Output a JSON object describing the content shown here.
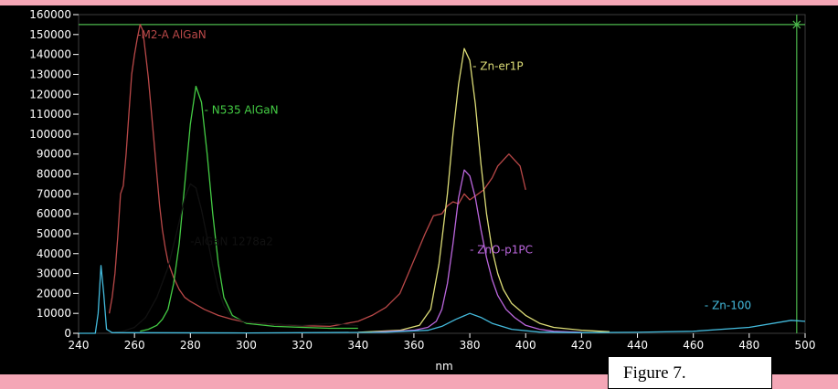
{
  "chart_data": {
    "type": "line",
    "title": "",
    "xlabel": "nm",
    "ylabel": "",
    "xlim": [
      240,
      500
    ],
    "ylim": [
      0,
      160000
    ],
    "x_ticks": [
      240,
      260,
      280,
      300,
      320,
      340,
      360,
      380,
      400,
      420,
      440,
      460,
      480,
      500
    ],
    "y_ticks": [
      0,
      10000,
      20000,
      30000,
      40000,
      50000,
      60000,
      70000,
      80000,
      90000,
      100000,
      110000,
      120000,
      130000,
      140000,
      150000,
      160000
    ],
    "grid": false,
    "legend": "none",
    "cursor_y": 155000,
    "cursor_x": 497,
    "series": [
      {
        "name": "-M2-A AlGaN",
        "color": "#b94848",
        "label_at": [
          261,
          150000
        ],
        "points": [
          [
            251,
            10000
          ],
          [
            252,
            18000
          ],
          [
            253,
            30000
          ],
          [
            254,
            48000
          ],
          [
            255,
            70000
          ],
          [
            256,
            74000
          ],
          [
            257,
            90000
          ],
          [
            258,
            110000
          ],
          [
            259,
            130000
          ],
          [
            260,
            140000
          ],
          [
            261,
            148000
          ],
          [
            262,
            155000
          ],
          [
            263,
            152000
          ],
          [
            264,
            140000
          ],
          [
            265,
            128000
          ],
          [
            266,
            112000
          ],
          [
            267,
            96000
          ],
          [
            268,
            80000
          ],
          [
            269,
            64000
          ],
          [
            270,
            52000
          ],
          [
            271,
            43000
          ],
          [
            272,
            36000
          ],
          [
            274,
            28000
          ],
          [
            276,
            22000
          ],
          [
            278,
            18000
          ],
          [
            280,
            16000
          ],
          [
            285,
            12000
          ],
          [
            290,
            9000
          ],
          [
            295,
            7000
          ],
          [
            300,
            5500
          ],
          [
            310,
            4500
          ],
          [
            320,
            3800
          ],
          [
            330,
            3500
          ],
          [
            340,
            6000
          ],
          [
            345,
            9000
          ],
          [
            350,
            13000
          ],
          [
            355,
            20000
          ],
          [
            358,
            30000
          ],
          [
            361,
            40000
          ],
          [
            364,
            50000
          ],
          [
            367,
            59000
          ],
          [
            370,
            60000
          ],
          [
            372,
            64000
          ],
          [
            374,
            66000
          ],
          [
            376,
            65000
          ],
          [
            378,
            70000
          ],
          [
            380,
            67000
          ],
          [
            382,
            69000
          ],
          [
            385,
            72000
          ],
          [
            388,
            78000
          ],
          [
            390,
            84000
          ],
          [
            392,
            87000
          ],
          [
            394,
            90000
          ],
          [
            396,
            87000
          ],
          [
            398,
            84000
          ],
          [
            399,
            78000
          ],
          [
            400,
            72000
          ]
        ]
      },
      {
        "name": "- N535 AlGaN",
        "color": "#44cc44",
        "label_at": [
          285,
          112000
        ],
        "points": [
          [
            262,
            1000
          ],
          [
            265,
            2000
          ],
          [
            268,
            4000
          ],
          [
            270,
            7000
          ],
          [
            272,
            12000
          ],
          [
            274,
            25000
          ],
          [
            276,
            45000
          ],
          [
            278,
            75000
          ],
          [
            280,
            105000
          ],
          [
            282,
            124000
          ],
          [
            284,
            116000
          ],
          [
            286,
            90000
          ],
          [
            288,
            60000
          ],
          [
            290,
            35000
          ],
          [
            292,
            18000
          ],
          [
            295,
            9000
          ],
          [
            300,
            5000
          ],
          [
            310,
            3500
          ],
          [
            320,
            3000
          ],
          [
            330,
            2500
          ],
          [
            340,
            2500
          ]
        ]
      },
      {
        "name": "-AlGaN 1278a2",
        "color": "#111111",
        "label_at": [
          280,
          46000
        ],
        "points": [
          [
            253,
            500
          ],
          [
            256,
            1000
          ],
          [
            260,
            3000
          ],
          [
            264,
            8000
          ],
          [
            268,
            18000
          ],
          [
            272,
            33000
          ],
          [
            275,
            50000
          ],
          [
            278,
            68000
          ],
          [
            280,
            75000
          ],
          [
            282,
            73000
          ],
          [
            284,
            62000
          ],
          [
            286,
            48000
          ],
          [
            288,
            34000
          ],
          [
            290,
            22000
          ],
          [
            292,
            14000
          ],
          [
            295,
            8000
          ],
          [
            300,
            5500
          ],
          [
            310,
            4500
          ],
          [
            320,
            4000
          ],
          [
            330,
            5000
          ],
          [
            335,
            4500
          ],
          [
            340,
            3800
          ]
        ]
      },
      {
        "name": "- Zn-er1P",
        "color": "#dddd77",
        "label_at": [
          381,
          134000
        ],
        "points": [
          [
            340,
            500
          ],
          [
            355,
            1500
          ],
          [
            362,
            4000
          ],
          [
            366,
            12000
          ],
          [
            369,
            35000
          ],
          [
            372,
            70000
          ],
          [
            374,
            100000
          ],
          [
            376,
            125000
          ],
          [
            378,
            143000
          ],
          [
            380,
            137000
          ],
          [
            382,
            115000
          ],
          [
            384,
            85000
          ],
          [
            386,
            60000
          ],
          [
            388,
            42000
          ],
          [
            390,
            30000
          ],
          [
            392,
            22000
          ],
          [
            395,
            15000
          ],
          [
            400,
            9000
          ],
          [
            405,
            5000
          ],
          [
            410,
            3000
          ],
          [
            420,
            1500
          ],
          [
            430,
            800
          ]
        ]
      },
      {
        "name": "- ZnO-p1PC",
        "color": "#bb66dd",
        "label_at": [
          380,
          42000
        ],
        "points": [
          [
            345,
            500
          ],
          [
            360,
            1500
          ],
          [
            365,
            3000
          ],
          [
            368,
            6000
          ],
          [
            370,
            12000
          ],
          [
            372,
            25000
          ],
          [
            374,
            45000
          ],
          [
            376,
            68000
          ],
          [
            378,
            82000
          ],
          [
            380,
            79000
          ],
          [
            382,
            68000
          ],
          [
            384,
            52000
          ],
          [
            386,
            38000
          ],
          [
            388,
            27000
          ],
          [
            390,
            19000
          ],
          [
            393,
            12000
          ],
          [
            396,
            8000
          ],
          [
            400,
            4000
          ],
          [
            405,
            2000
          ],
          [
            410,
            1000
          ],
          [
            420,
            500
          ]
        ]
      },
      {
        "name": "- Zn-100",
        "color": "#44bbdd",
        "label_at": [
          464,
          14000
        ],
        "points": [
          [
            240,
            0
          ],
          [
            246,
            0
          ],
          [
            247,
            10000
          ],
          [
            248,
            34000
          ],
          [
            249,
            20000
          ],
          [
            250,
            2000
          ],
          [
            252,
            300
          ],
          [
            300,
            200
          ],
          [
            350,
            500
          ],
          [
            365,
            1500
          ],
          [
            370,
            3500
          ],
          [
            375,
            7000
          ],
          [
            380,
            10000
          ],
          [
            384,
            8000
          ],
          [
            388,
            5000
          ],
          [
            395,
            2000
          ],
          [
            405,
            600
          ],
          [
            420,
            300
          ],
          [
            440,
            500
          ],
          [
            460,
            1000
          ],
          [
            480,
            3000
          ],
          [
            495,
            6500
          ],
          [
            500,
            6000
          ]
        ]
      }
    ]
  },
  "caption": "Figure 7."
}
